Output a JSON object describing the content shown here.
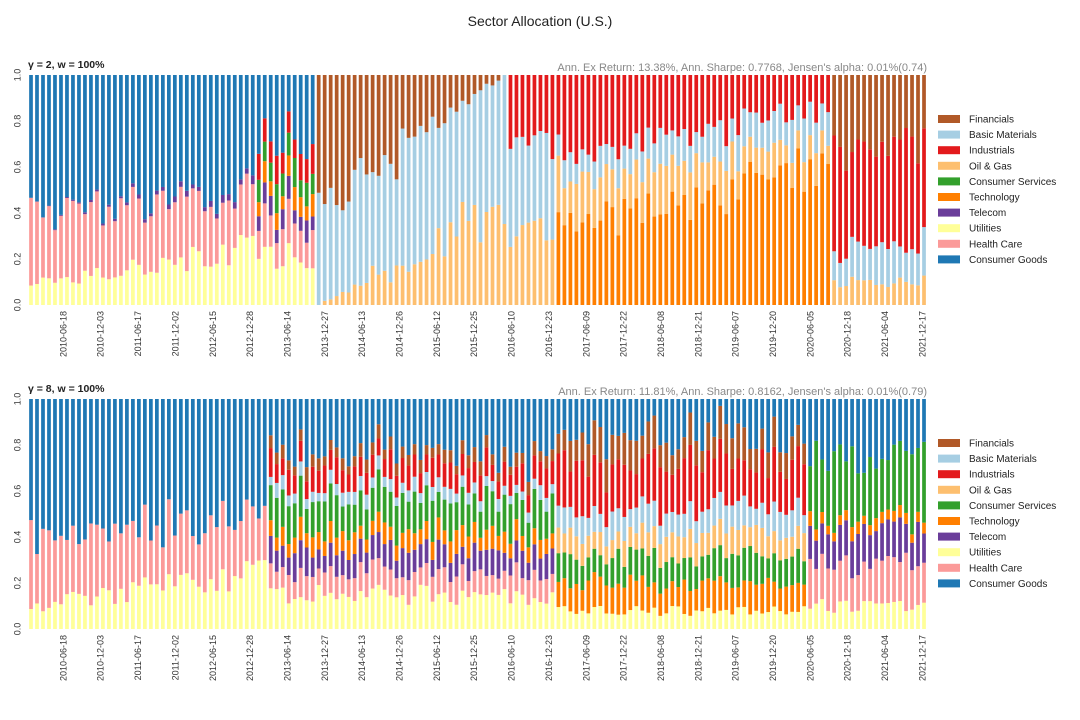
{
  "figure": {
    "title": "Sector Allocation (U.S.)"
  },
  "sectors": [
    {
      "name": "Financials",
      "color": "#b15928"
    },
    {
      "name": "Basic Materials",
      "color": "#a6cee3"
    },
    {
      "name": "Industrials",
      "color": "#e31a1c"
    },
    {
      "name": "Oil & Gas",
      "color": "#fdbf6f"
    },
    {
      "name": "Consumer Services",
      "color": "#33a02c"
    },
    {
      "name": "Technology",
      "color": "#ff7f00"
    },
    {
      "name": "Telecom",
      "color": "#6a3d9a"
    },
    {
      "name": "Utilities",
      "color": "#ffff99"
    },
    {
      "name": "Health Care",
      "color": "#fb9a99"
    },
    {
      "name": "Consumer Goods",
      "color": "#1f78b4"
    }
  ],
  "chart_data": [
    {
      "type": "bar",
      "stacked": true,
      "title": "γ = 2, w = 100%",
      "stats": "Ann. Ex Return: 13.38%, Ann. Sharpe: 0.7768, Jensen's alpha: 0.01%(0.74)",
      "ylim": [
        0,
        1
      ],
      "yticks": [
        "0.0",
        "0.2",
        "0.4",
        "0.6",
        "0.8",
        "1.0"
      ],
      "xticks": [
        "2010-06-18",
        "2010-12-03",
        "2011-06-17",
        "2011-12-02",
        "2012-06-15",
        "2012-12-28",
        "2013-06-14",
        "2013-12-27",
        "2014-06-13",
        "2014-12-26",
        "2015-06-12",
        "2015-12-25",
        "2016-06-10",
        "2016-12-23",
        "2017-06-09",
        "2017-12-22",
        "2018-06-08",
        "2018-12-21",
        "2019-06-07",
        "2019-12-20",
        "2020-06-05",
        "2020-12-18",
        "2021-06-04",
        "2021-12-17"
      ],
      "legend_position": "right",
      "n_bars": 150,
      "segments": [
        {
          "start": 0,
          "end": 38,
          "Utilities": [
            0.1,
            0.25
          ],
          "Health Care": [
            0.32,
            0.22
          ],
          "Telecom": [
            0.0,
            0.03
          ],
          "Consumer Goods": "rest"
        },
        {
          "start": 38,
          "end": 48,
          "Utilities": 0.22,
          "Telecom": 0.08,
          "Health Care": 0.15,
          "Consumer Services": 0.1,
          "Industrials": 0.1,
          "Technology": 0.08,
          "Consumer Goods": "rest"
        },
        {
          "start": 48,
          "end": 80,
          "Financials": [
            0.6,
            0.0
          ],
          "Basic Materials": [
            0.4,
            0.6
          ],
          "Oil & Gas": [
            0.0,
            0.4
          ]
        },
        {
          "start": 80,
          "end": 88,
          "Basic Materials": 0.4,
          "Industrials": 0.3,
          "Oil & Gas": 0.3
        },
        {
          "start": 88,
          "end": 134,
          "Technology": [
            0.35,
            0.6
          ],
          "Industrials": [
            0.35,
            0.15
          ],
          "Oil & Gas": [
            0.2,
            0.1
          ],
          "Basic Materials": [
            0.1,
            0.15
          ]
        },
        {
          "start": 134,
          "end": 150,
          "Industrials": 0.45,
          "Financials": 0.3,
          "Oil & Gas": 0.1,
          "Basic Materials": 0.15
        }
      ]
    },
    {
      "type": "bar",
      "stacked": true,
      "title": "γ = 8, w = 100%",
      "stats": "Ann. Ex Return: 11.81%, Ann. Sharpe: 0.8162, Jensen's alpha: 0.01%(0.79)",
      "ylim": [
        0,
        1
      ],
      "yticks": [
        "0.0",
        "0.2",
        "0.4",
        "0.6",
        "0.8",
        "1.0"
      ],
      "xticks": [
        "2010-06-18",
        "2010-12-03",
        "2011-06-17",
        "2011-12-02",
        "2012-06-15",
        "2012-12-28",
        "2013-06-14",
        "2013-12-27",
        "2014-06-13",
        "2014-12-26",
        "2015-06-12",
        "2015-12-25",
        "2016-06-10",
        "2016-12-23",
        "2017-06-09",
        "2017-12-22",
        "2018-06-08",
        "2018-12-21",
        "2019-06-07",
        "2019-12-20",
        "2020-06-05",
        "2020-12-18",
        "2021-06-04",
        "2021-12-17"
      ],
      "legend_position": "right",
      "n_bars": 150,
      "segments": [
        {
          "start": 0,
          "end": 40,
          "Utilities": [
            0.1,
            0.25
          ],
          "Health Care": [
            0.3,
            0.22
          ],
          "Consumer Goods": "rest"
        },
        {
          "start": 40,
          "end": 88,
          "Utilities": 0.15,
          "Telecom": 0.1,
          "Technology": 0.08,
          "Health Care": 0.1,
          "Basic Materials": 0.05,
          "Financials": 0.05,
          "Industrials": 0.1,
          "Consumer Services": 0.15,
          "Consumer Goods": "rest"
        },
        {
          "start": 88,
          "end": 130,
          "Oil & Gas": 0.1,
          "Basic Materials": 0.1,
          "Technology": 0.12,
          "Financials": 0.12,
          "Consumer Services": 0.12,
          "Utilities": 0.08,
          "Industrials": 0.2,
          "Consumer Goods": "rest"
        },
        {
          "start": 130,
          "end": 150,
          "Technology": 0.05,
          "Utilities": 0.1,
          "Health Care": 0.2,
          "Telecom": 0.15,
          "Consumer Goods": 0.25,
          "Consumer Services": "rest"
        }
      ]
    }
  ]
}
